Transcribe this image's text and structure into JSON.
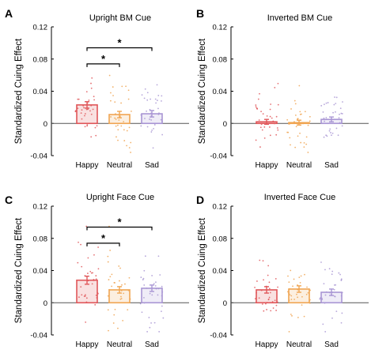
{
  "figure": {
    "colors": {
      "Happy": "#e0575a",
      "Neutral": "#f0a552",
      "Sad": "#a996d4",
      "axis": "#000000",
      "zero_line": "#555555"
    }
  },
  "chart_data": [
    {
      "type": "bar",
      "panel_letter": "A",
      "title": "Upright BM Cue",
      "ylabel": "Standardized Cuing Effect",
      "categories": [
        "Happy",
        "Neutral",
        "Sad"
      ],
      "values": [
        0.023,
        0.011,
        0.012
      ],
      "error": [
        0.004,
        0.004,
        0.004
      ],
      "ylim": [
        -0.04,
        0.12
      ],
      "yticks": [
        "-0.04",
        "0",
        "0.04",
        "0.08",
        "0.12"
      ],
      "significance": [
        {
          "from": "Happy",
          "to": "Neutral",
          "label": "*"
        },
        {
          "from": "Happy",
          "to": "Sad",
          "label": "*"
        }
      ],
      "individual_points": true
    },
    {
      "type": "bar",
      "panel_letter": "B",
      "title": "Inverted BM Cue",
      "ylabel": "Standardized Cuing Effect",
      "categories": [
        "Happy",
        "Neutral",
        "Sad"
      ],
      "values": [
        0.002,
        0.001,
        0.005
      ],
      "error": [
        0.003,
        0.003,
        0.003
      ],
      "ylim": [
        -0.04,
        0.12
      ],
      "yticks": [
        "-0.04",
        "0",
        "0.04",
        "0.08",
        "0.12"
      ],
      "significance": [],
      "individual_points": true
    },
    {
      "type": "bar",
      "panel_letter": "C",
      "title": "Upright Face Cue",
      "ylabel": "Standardized Cuing Effect",
      "categories": [
        "Happy",
        "Neutral",
        "Sad"
      ],
      "values": [
        0.028,
        0.016,
        0.018
      ],
      "error": [
        0.005,
        0.004,
        0.004
      ],
      "ylim": [
        -0.04,
        0.12
      ],
      "yticks": [
        "-0.04",
        "0",
        "0.04",
        "0.08",
        "0.12"
      ],
      "significance": [
        {
          "from": "Happy",
          "to": "Neutral",
          "label": "*"
        },
        {
          "from": "Happy",
          "to": "Sad",
          "label": "*"
        }
      ],
      "individual_points": true
    },
    {
      "type": "bar",
      "panel_letter": "D",
      "title": "Inverted Face Cue",
      "ylabel": "Standardized Cuing Effect",
      "categories": [
        "Happy",
        "Neutral",
        "Sad"
      ],
      "values": [
        0.016,
        0.017,
        0.013
      ],
      "error": [
        0.004,
        0.004,
        0.004
      ],
      "ylim": [
        -0.04,
        0.12
      ],
      "yticks": [
        "-0.04",
        "0",
        "0.04",
        "0.08",
        "0.12"
      ],
      "significance": [],
      "individual_points": true
    }
  ]
}
